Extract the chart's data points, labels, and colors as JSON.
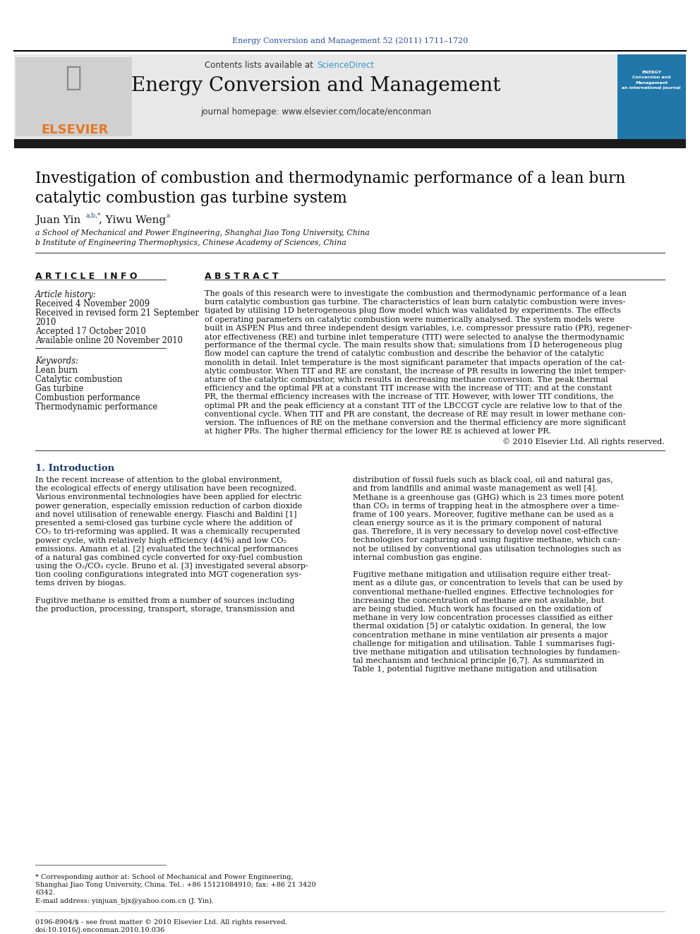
{
  "journal_ref": "Energy Conversion and Management 52 (2011) 1711–1720",
  "contents_text": "Contents lists available at ",
  "sciencedirect_text": "ScienceDirect",
  "journal_name": "Energy Conversion and Management",
  "journal_homepage": "journal homepage: www.elsevier.com/locate/enconman",
  "title_line1": "Investigation of combustion and thermodynamic performance of a lean burn",
  "title_line2": "catalytic combustion gas turbine system",
  "affiliation_a": "a School of Mechanical and Power Engineering, Shanghai Jiao Tong University, China",
  "affiliation_b": "b Institute of Engineering Thermophysics, Chinese Academy of Sciences, China",
  "article_info_header": "A R T I C L E   I N F O",
  "abstract_header": "A B S T R A C T",
  "article_history_label": "Article history:",
  "received": "Received 4 November 2009",
  "revised": "Received in revised form 21 September",
  "revised2": "2010",
  "accepted": "Accepted 17 October 2010",
  "available": "Available online 20 November 2010",
  "keywords_label": "Keywords:",
  "keyword1": "Lean burn",
  "keyword2": "Catalytic combustion",
  "keyword3": "Gas turbine",
  "keyword4": "Combustion performance",
  "keyword5": "Thermodynamic performance",
  "copyright": "© 2010 Elsevier Ltd. All rights reserved.",
  "intro_header": "1. Introduction",
  "footnote_line1": "* Corresponding author at: School of Mechanical and Power Engineering,",
  "footnote_line2": "Shanghai Jiao Tong University, China. Tel.: +86 15121084910; fax: +86 21 3420",
  "footnote_line3": "6342.",
  "footnote_email": "E-mail address: yinjuan_bjx@yahoo.com.cn (J. Yin).",
  "footer_issn": "0196-8904/$ - see front matter © 2010 Elsevier Ltd. All rights reserved.",
  "footer_doi": "doi:10.1016/j.enconman.2010.10.036",
  "bg_color": "#ffffff",
  "black_bar_color": "#1a1a1a",
  "journal_ref_color": "#2b4fa0",
  "sciencedirect_color": "#3399cc",
  "elsevier_orange": "#e87722",
  "title_color": "#000000",
  "section_header_color": "#1a3a6e",
  "abstract_lines": [
    "The goals of this research were to investigate the combustion and thermodynamic performance of a lean",
    "burn catalytic combustion gas turbine. The characteristics of lean burn catalytic combustion were inves-",
    "tigated by utilising 1D heterogeneous plug flow model which was validated by experiments. The effects",
    "of operating parameters on catalytic combustion were numerically analysed. The system models were",
    "built in ASPEN Plus and three independent design variables, i.e. compressor pressure ratio (PR), regener-",
    "ator effectiveness (RE) and turbine inlet temperature (TIT) were selected to analyse the thermodynamic",
    "performance of the thermal cycle. The main results show that; simulations from 1D heterogeneous plug",
    "flow model can capture the trend of catalytic combustion and describe the behavior of the catalytic",
    "monolith in detail. Inlet temperature is the most significant parameter that impacts operation of the cat-",
    "alytic combustor. When TIT and RE are constant, the increase of PR results in lowering the inlet temper-",
    "ature of the catalytic combustor, which results in decreasing methane conversion. The peak thermal",
    "efficiency and the optimal PR at a constant TIT increase with the increase of TIT; and at the constant",
    "PR, the thermal efficiency increases with the increase of TIT. However, with lower TIT conditions, the",
    "optimal PR and the peak efficiency at a constant TIT of the LBCCGT cycle are relative low to that of the",
    "conventional cycle. When TIT and PR are constant, the decrease of RE may result in lower methane con-",
    "version. The influences of RE on the methane conversion and the thermal efficiency are more significant",
    "at higher PRs. The higher thermal efficiency for the lower RE is achieved at lower PR."
  ],
  "intro_left_lines": [
    "In the recent increase of attention to the global environment,",
    "the ecological effects of energy utilisation have been recognized.",
    "Various environmental technologies have been applied for electric",
    "power generation, especially emission reduction of carbon dioxide",
    "and novel utilisation of renewable energy. Fiaschi and Baldini [1]",
    "presented a semi-closed gas turbine cycle where the addition of",
    "CO₂ to tri-reforming was applied. It was a chemically recuperated",
    "power cycle, with relatively high efficiency (44%) and low CO₂",
    "emissions. Amann et al. [2] evaluated the technical performances",
    "of a natural gas combined cycle converted for oxy-fuel combustion",
    "using the O₂/CO₂ cycle. Bruno et al. [3] investigated several absorp-",
    "tion cooling configurations integrated into MGT cogeneration sys-",
    "tems driven by biogas.",
    "",
    "Fugitive methane is emitted from a number of sources including",
    "the production, processing, transport, storage, transmission and"
  ],
  "intro_right_lines": [
    "distribution of fossil fuels such as black coal, oil and natural gas,",
    "and from landfills and animal waste management as well [4].",
    "Methane is a greenhouse gas (GHG) which is 23 times more potent",
    "than CO₂ in terms of trapping heat in the atmosphere over a time-",
    "frame of 100 years. Moreover, fugitive methane can be used as a",
    "clean energy source as it is the primary component of natural",
    "gas. Therefore, it is very necessary to develop novel cost-effective",
    "technologies for capturing and using fugitive methane, which can-",
    "not be utilised by conventional gas utilisation technologies such as",
    "internal combustion gas engine.",
    "",
    "Fugitive methane mitigation and utilisation require either treat-",
    "ment as a dilute gas, or concentration to levels that can be used by",
    "conventional methane-fuelled engines. Effective technologies for",
    "increasing the concentration of methane are not available, but",
    "are being studied. Much work has focused on the oxidation of",
    "methane in very low concentration processes classified as either",
    "thermal oxidation [5] or catalytic oxidation. In general, the low",
    "concentration methane in mine ventilation air presents a major",
    "challenge for mitigation and utilisation. Table 1 summarises fugi-",
    "tive methane mitigation and utilisation technologies by fundamen-",
    "tal mechanism and technical principle [6,7]. As summarized in",
    "Table 1, potential fugitive methane mitigation and utilisation"
  ]
}
